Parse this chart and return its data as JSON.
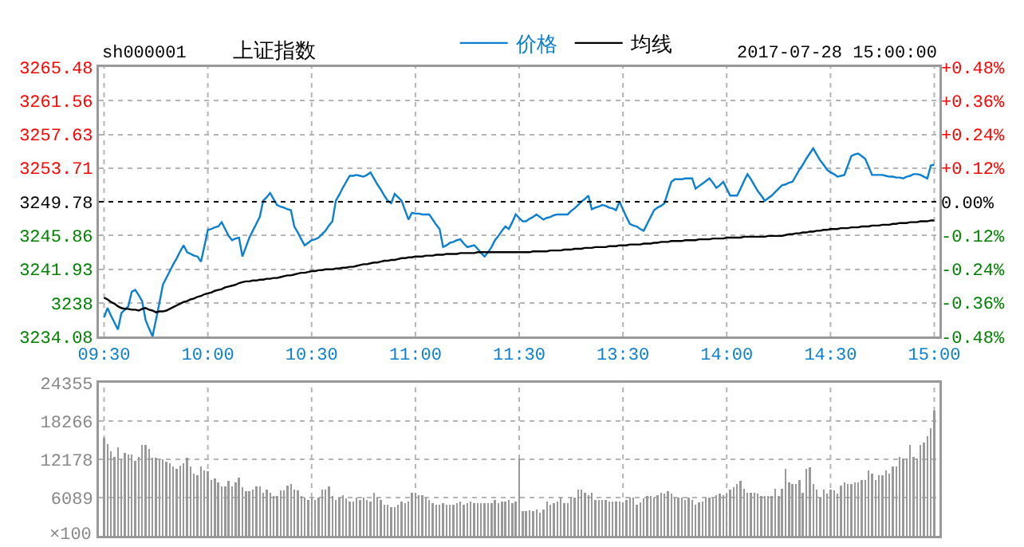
{
  "chart_data": [
    {
      "type": "line",
      "title": "上证指数",
      "subtitle": "sh000001",
      "annotations": [
        "2017-07-28 15:00:00"
      ],
      "categories": [
        "09:30",
        null,
        null,
        null,
        null,
        null,
        null,
        null,
        null,
        null,
        null,
        null,
        null,
        null,
        null,
        null,
        null,
        null,
        null,
        null,
        null,
        null,
        null,
        null,
        null,
        null,
        null,
        null,
        null,
        null,
        "10:00",
        null,
        null,
        null,
        null,
        null,
        null,
        null,
        null,
        null,
        null,
        null,
        null,
        null,
        null,
        null,
        null,
        null,
        null,
        null,
        null,
        null,
        null,
        null,
        null,
        null,
        null,
        null,
        null,
        null,
        "10:30",
        null,
        null,
        null,
        null,
        null,
        null,
        null,
        null,
        null,
        null,
        null,
        null,
        null,
        null,
        null,
        null,
        null,
        null,
        null,
        null,
        null,
        null,
        null,
        null,
        null,
        null,
        null,
        null,
        null,
        "11:00",
        null,
        null,
        null,
        null,
        null,
        null,
        null,
        null,
        null,
        null,
        null,
        null,
        null,
        null,
        null,
        null,
        null,
        null,
        null,
        null,
        null,
        null,
        null,
        null,
        null,
        null,
        null,
        null,
        null,
        "11:30",
        null,
        null,
        null,
        null,
        null,
        null,
        null,
        null,
        null,
        null,
        null,
        null,
        null,
        null,
        null,
        null,
        null,
        null,
        null,
        null,
        null,
        null,
        null,
        null,
        null,
        null,
        null,
        null,
        null,
        "13:30",
        null,
        null,
        null,
        null,
        null,
        null,
        null,
        null,
        null,
        null,
        null,
        null,
        null,
        null,
        null,
        null,
        null,
        null,
        null,
        null,
        null,
        null,
        null,
        null,
        null,
        null,
        null,
        null,
        null,
        "14:00",
        null,
        null,
        null,
        null,
        null,
        null,
        null,
        null,
        null,
        null,
        null,
        null,
        null,
        null,
        null,
        null,
        null,
        null,
        null,
        null,
        null,
        null,
        null,
        null,
        null,
        null,
        null,
        null,
        null,
        "14:30",
        null,
        null,
        null,
        null,
        null,
        null,
        null,
        null,
        null,
        null,
        null,
        null,
        null,
        null,
        null,
        null,
        null,
        null,
        null,
        null,
        null,
        null,
        null,
        null,
        null,
        null,
        null,
        null,
        null,
        "15:00"
      ],
      "series": [
        {
          "name": "价格",
          "color": "#0b7fd0",
          "values": [
            3236.3,
            3237.4,
            3236.5,
            3235.7,
            3234.9,
            3236.8,
            3237.2,
            3237.6,
            3239.3,
            3239.5,
            3238.9,
            3238.2,
            3236.0,
            3235.0,
            3234.1,
            3236.0,
            3238.0,
            3240.1,
            3240.9,
            3241.7,
            3242.5,
            3243.2,
            3244.0,
            3244.7,
            3243.9,
            3243.7,
            3243.5,
            3243.4,
            3242.8,
            3244.6,
            3246.5,
            3246.6,
            3246.8,
            3246.9,
            3247.4,
            3246.6,
            3245.8,
            3245.3,
            3245.5,
            3245.6,
            3243.4,
            3244.5,
            3245.6,
            3246.4,
            3247.2,
            3248.0,
            3249.9,
            3250.3,
            3250.8,
            3250.1,
            3249.4,
            3249.2,
            3249.1,
            3248.9,
            3248.8,
            3246.9,
            3246.2,
            3245.4,
            3244.7,
            3245.0,
            3245.3,
            3245.4,
            3245.6,
            3246.0,
            3246.4,
            3247.0,
            3247.5,
            3249.9,
            3250.6,
            3251.4,
            3252.1,
            3252.8,
            3252.8,
            3252.9,
            3252.8,
            3252.7,
            3252.9,
            3253.2,
            3252.5,
            3251.8,
            3251.2,
            3250.5,
            3249.9,
            3249.6,
            3250.7,
            3250.3,
            3249.9,
            3248.8,
            3247.7,
            3248.5,
            3248.4,
            3248.4,
            3248.3,
            3248.3,
            3248.3,
            3247.7,
            3247.1,
            3246.6,
            3244.5,
            3244.7,
            3245.0,
            3245.1,
            3245.3,
            3245.4,
            3244.9,
            3244.5,
            3244.6,
            3244.7,
            3244.3,
            3243.8,
            3243.4,
            3243.9,
            3244.5,
            3245.3,
            3245.8,
            3246.4,
            3246.9,
            3246.6,
            3247.4,
            3248.3,
            3247.9,
            3247.5,
            3247.5,
            3247.8,
            3248.0,
            3248.3,
            3248.0,
            3247.7,
            3247.9,
            3248.0,
            3248.2,
            3248.3,
            3248.3,
            3248.3,
            3248.3,
            3248.7,
            3249.0,
            3249.4,
            3249.8,
            3250.1,
            3250.5,
            3248.9,
            3249.1,
            3249.2,
            3249.4,
            3249.3,
            3249.1,
            3249.0,
            3248.8,
            3249.8,
            3248.9,
            3248.0,
            3247.2,
            3247.0,
            3246.9,
            3246.6,
            3246.4,
            3247.2,
            3248.0,
            3248.8,
            3249.1,
            3249.3,
            3249.6,
            3250.9,
            3252.1,
            3252.4,
            3252.4,
            3252.4,
            3252.5,
            3252.5,
            3252.5,
            3251.3,
            3251.6,
            3251.9,
            3252.2,
            3252.5,
            3252.0,
            3251.4,
            3251.7,
            3252.1,
            3251.3,
            3250.5,
            3250.5,
            3250.5,
            3251.3,
            3252.2,
            3253.0,
            3252.4,
            3251.7,
            3251.0,
            3250.5,
            3249.9,
            3250.2,
            3250.5,
            3250.9,
            3251.3,
            3251.7,
            3251.8,
            3252.0,
            3252.1,
            3252.8,
            3253.5,
            3254.1,
            3254.8,
            3255.4,
            3256.0,
            3255.3,
            3254.6,
            3254.1,
            3253.5,
            3253.2,
            3253.0,
            3252.7,
            3252.8,
            3252.9,
            3254.0,
            3255.1,
            3255.3,
            3255.4,
            3255.1,
            3254.8,
            3253.9,
            3252.9,
            3252.9,
            3252.9,
            3252.9,
            3252.8,
            3252.7,
            3252.7,
            3252.6,
            3252.6,
            3252.5,
            3252.7,
            3252.8,
            3253.0,
            3253.0,
            3252.9,
            3252.7,
            3252.5,
            3254.0,
            3254.1
          ]
        },
        {
          "name": "均线",
          "color": "#000000",
          "values": [
            3238.6,
            3238.4,
            3238.1,
            3237.9,
            3237.6,
            3237.4,
            3237.3,
            3237.3,
            3237.2,
            3237.2,
            3237.1,
            3237.3,
            3237.4,
            3237.2,
            3237.1,
            3236.9,
            3237.0,
            3237.0,
            3237.1,
            3237.3,
            3237.5,
            3237.7,
            3237.9,
            3238.1,
            3238.2,
            3238.4,
            3238.5,
            3238.7,
            3238.8,
            3239.0,
            3239.1,
            3239.2,
            3239.4,
            3239.5,
            3239.6,
            3239.8,
            3239.9,
            3240.0,
            3240.1,
            3240.3,
            3240.4,
            3240.5,
            3240.5,
            3240.6,
            3240.6,
            3240.7,
            3240.7,
            3240.8,
            3240.8,
            3240.9,
            3240.9,
            3241.0,
            3241.1,
            3241.2,
            3241.2,
            3241.3,
            3241.4,
            3241.5,
            3241.5,
            3241.6,
            3241.7,
            3241.7,
            3241.8,
            3241.8,
            3241.9,
            3241.9,
            3241.9,
            3242.0,
            3242.0,
            3242.1,
            3242.1,
            3242.2,
            3242.2,
            3242.3,
            3242.4,
            3242.5,
            3242.5,
            3242.6,
            3242.7,
            3242.7,
            3242.8,
            3242.9,
            3242.9,
            3243.0,
            3243.0,
            3243.1,
            3243.2,
            3243.2,
            3243.3,
            3243.3,
            3243.4,
            3243.4,
            3243.4,
            3243.5,
            3243.5,
            3243.5,
            3243.6,
            3243.6,
            3243.6,
            3243.7,
            3243.7,
            3243.7,
            3243.7,
            3243.8,
            3243.8,
            3243.8,
            3243.8,
            3243.8,
            3243.9,
            3243.9,
            3243.9,
            3243.9,
            3243.9,
            3243.9,
            3243.9,
            3243.9,
            3243.9,
            3243.9,
            3243.9,
            3243.9,
            3243.9,
            3243.9,
            3243.9,
            3243.9,
            3244.0,
            3244.0,
            3244.0,
            3244.0,
            3244.0,
            3244.1,
            3244.1,
            3244.1,
            3244.1,
            3244.2,
            3244.2,
            3244.2,
            3244.3,
            3244.3,
            3244.3,
            3244.4,
            3244.4,
            3244.4,
            3244.5,
            3244.5,
            3244.5,
            3244.5,
            3244.6,
            3244.6,
            3244.6,
            3244.7,
            3244.7,
            3244.7,
            3244.8,
            3244.8,
            3244.8,
            3244.8,
            3244.9,
            3244.9,
            3244.9,
            3245.0,
            3245.0,
            3245.1,
            3245.1,
            3245.1,
            3245.2,
            3245.2,
            3245.2,
            3245.2,
            3245.3,
            3245.3,
            3245.3,
            3245.3,
            3245.4,
            3245.4,
            3245.4,
            3245.4,
            3245.5,
            3245.5,
            3245.5,
            3245.5,
            3245.6,
            3245.6,
            3245.6,
            3245.6,
            3245.6,
            3245.7,
            3245.7,
            3245.7,
            3245.7,
            3245.7,
            3245.7,
            3245.7,
            3245.8,
            3245.8,
            3245.8,
            3245.8,
            3245.8,
            3245.9,
            3246.0,
            3246.0,
            3246.1,
            3246.1,
            3246.2,
            3246.2,
            3246.3,
            3246.3,
            3246.4,
            3246.4,
            3246.5,
            3246.5,
            3246.6,
            3246.6,
            3246.6,
            3246.7,
            3246.7,
            3246.7,
            3246.8,
            3246.8,
            3246.8,
            3246.9,
            3246.9,
            3246.9,
            3247.0,
            3247.0,
            3247.0,
            3247.1,
            3247.1,
            3247.1,
            3247.2,
            3247.2,
            3247.3,
            3247.3,
            3247.3,
            3247.4,
            3247.4,
            3247.4,
            3247.5,
            3247.5,
            3247.5,
            3247.6,
            3247.6
          ]
        }
      ],
      "ylim": [
        3234.08,
        3265.48
      ],
      "yticks": [
        3234.08,
        3238.0,
        3241.93,
        3245.86,
        3249.78,
        3253.71,
        3257.63,
        3261.56,
        3265.48
      ],
      "y2lim": [
        -0.48,
        0.48
      ],
      "y2ticks": [
        {
          "value": -0.48,
          "label": "-0.48%"
        },
        {
          "value": -0.36,
          "label": "-0.36%"
        },
        {
          "value": -0.24,
          "label": "-0.24%"
        },
        {
          "value": -0.12,
          "label": "-0.12%"
        },
        {
          "value": 0,
          "label": "0.00%"
        },
        {
          "value": 0.12,
          "label": "+0.12%"
        },
        {
          "value": 0.24,
          "label": "+0.24%"
        },
        {
          "value": 0.36,
          "label": "+0.36%"
        },
        {
          "value": 0.48,
          "label": "+0.48%"
        }
      ],
      "ref_lines": [
        {
          "axis": "y",
          "value": 3249.78,
          "color": "#000000",
          "line_style": "dotted"
        }
      ],
      "grid": true,
      "legend": "top"
    },
    {
      "type": "bar",
      "color": "#999999",
      "categories": [
        null,
        null,
        null,
        null,
        null,
        null,
        null,
        null,
        null,
        null,
        null,
        null,
        null,
        null,
        null,
        null,
        null,
        null,
        null,
        null,
        null,
        null,
        null,
        null,
        null,
        null,
        null,
        null,
        null,
        null,
        null,
        null,
        null,
        null,
        null,
        null,
        null,
        null,
        null,
        null,
        null,
        null,
        null,
        null,
        null,
        null,
        null,
        null,
        null,
        null,
        null,
        null,
        null,
        null,
        null,
        null,
        null,
        null,
        null,
        null,
        null,
        null,
        null,
        null,
        null,
        null,
        null,
        null,
        null,
        null,
        null,
        null,
        null,
        null,
        null,
        null,
        null,
        null,
        null,
        null,
        null,
        null,
        null,
        null,
        null,
        null,
        null,
        null,
        null,
        null,
        null,
        null,
        null,
        null,
        null,
        null,
        null,
        null,
        null,
        null,
        null,
        null,
        null,
        null,
        null,
        null,
        null,
        null,
        null,
        null,
        null,
        null,
        null,
        null,
        null,
        null,
        null,
        null,
        null,
        null,
        null,
        null,
        null,
        null,
        null,
        null,
        null,
        null,
        null,
        null,
        null,
        null,
        null,
        null,
        null,
        null,
        null,
        null,
        null,
        null,
        null,
        null,
        null,
        null,
        null,
        null,
        null,
        null,
        null,
        null,
        null,
        null,
        null,
        null,
        null,
        null,
        null,
        null,
        null,
        null,
        null,
        null,
        null,
        null,
        null,
        null,
        null,
        null,
        null,
        null,
        null,
        null,
        null,
        null,
        null,
        null,
        null,
        null,
        null,
        null,
        null,
        null,
        null,
        null,
        null,
        null,
        null,
        null,
        null,
        null,
        null,
        null,
        null,
        null,
        null,
        null,
        null,
        null,
        null,
        null,
        null,
        null,
        null,
        null,
        null,
        null,
        null,
        null,
        null,
        null,
        null,
        null,
        null,
        null,
        null,
        null,
        null,
        null,
        null,
        null,
        null,
        null,
        null,
        null,
        null,
        null,
        null,
        null,
        null,
        null,
        null,
        null,
        null,
        null,
        null,
        null,
        null,
        null,
        null,
        null,
        null
      ],
      "values": [
        15600,
        14600,
        13400,
        12600,
        14100,
        12200,
        13200,
        13000,
        13000,
        11900,
        12600,
        14400,
        14400,
        13800,
        12400,
        12400,
        12200,
        12200,
        11800,
        11500,
        11000,
        10700,
        11200,
        11500,
        12400,
        11000,
        9900,
        9700,
        11000,
        10400,
        10300,
        8900,
        9100,
        8500,
        7900,
        7900,
        8800,
        7900,
        8500,
        9300,
        7700,
        7100,
        7100,
        7300,
        7900,
        7900,
        6900,
        7300,
        6900,
        6300,
        6300,
        7200,
        7200,
        8000,
        8300,
        7300,
        7200,
        6300,
        6100,
        5700,
        6100,
        5700,
        6100,
        7300,
        7300,
        7900,
        6300,
        5700,
        6100,
        6500,
        5900,
        5400,
        5400,
        6100,
        5700,
        6100,
        5700,
        5400,
        6900,
        6100,
        5700,
        5000,
        5000,
        4600,
        4600,
        4900,
        5400,
        5200,
        5400,
        6900,
        6900,
        6500,
        6500,
        6100,
        5700,
        5200,
        5000,
        4900,
        5200,
        5000,
        5000,
        5000,
        5200,
        5400,
        4900,
        5200,
        5400,
        5200,
        5200,
        5200,
        5200,
        5200,
        5200,
        5700,
        5200,
        5400,
        5400,
        5700,
        5200,
        5400,
        12300,
        3900,
        3900,
        4100,
        3900,
        4200,
        3700,
        4200,
        5500,
        4900,
        5200,
        5400,
        6100,
        5200,
        5200,
        6100,
        6100,
        7300,
        7300,
        6900,
        6500,
        6900,
        5700,
        5700,
        5700,
        5700,
        5400,
        5400,
        5400,
        5400,
        5300,
        5700,
        6100,
        6100,
        5000,
        5300,
        5900,
        6300,
        6300,
        6100,
        6500,
        6900,
        6700,
        7100,
        6700,
        6100,
        6100,
        6100,
        5700,
        6100,
        5700,
        5000,
        5300,
        5400,
        6100,
        6100,
        6100,
        6500,
        6700,
        6500,
        6700,
        7300,
        7700,
        8300,
        8800,
        7500,
        6900,
        6900,
        6900,
        6700,
        6300,
        6300,
        6300,
        6300,
        7500,
        6300,
        7500,
        10700,
        8500,
        8300,
        8300,
        8900,
        6900,
        10600,
        10900,
        8300,
        7300,
        6100,
        7300,
        6700,
        7300,
        7200,
        6700,
        8000,
        8500,
        8300,
        8300,
        8500,
        8500,
        8900,
        8900,
        10400,
        9900,
        8900,
        9700,
        9700,
        10400,
        9900,
        11000,
        11000,
        12600,
        12300,
        12300,
        14400,
        12600,
        12300,
        14400,
        14800,
        15800,
        17100,
        19900
      ],
      "ylim": [
        0,
        24355
      ],
      "ylabel": "×100",
      "yticks": [
        6089,
        12178,
        18266,
        24355
      ],
      "grid": true
    }
  ]
}
